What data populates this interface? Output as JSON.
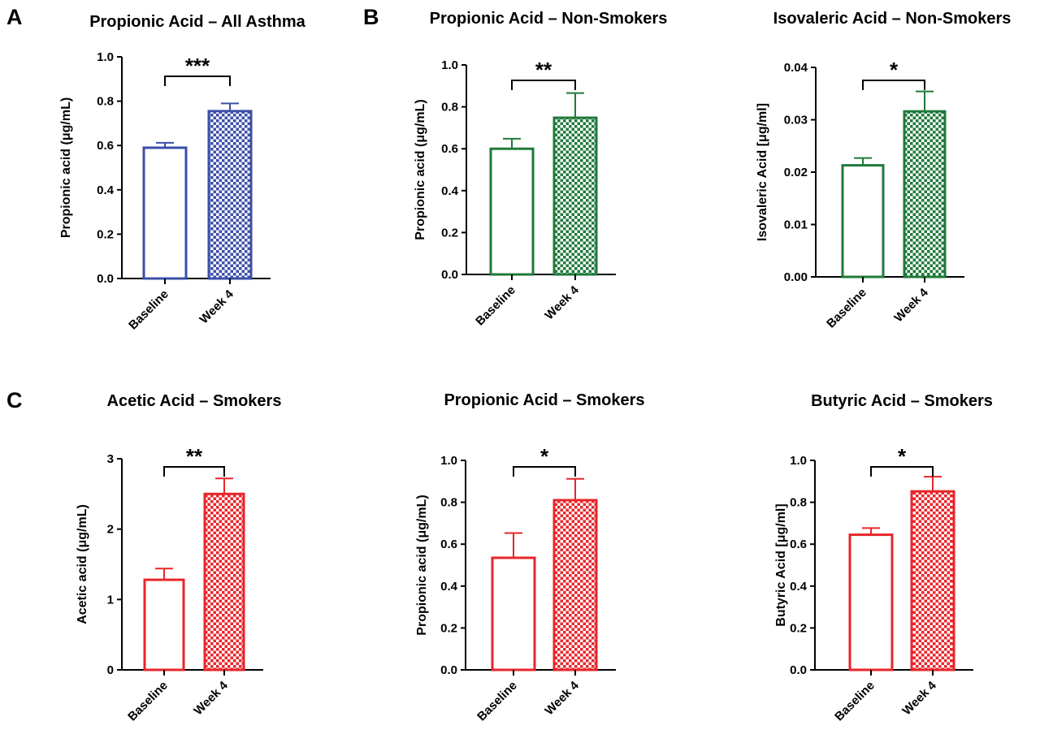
{
  "panel_letters": [
    "A",
    "B",
    "C"
  ],
  "colors": {
    "blue": "#3b4fa8",
    "green": "#1f7a3a",
    "red": "#e8262b"
  },
  "chart_data": [
    {
      "type": "bar",
      "title": "Propionic Acid – All Asthma",
      "ylabel": "Propionic acid (μg/mL)",
      "categories": [
        "Baseline",
        "Week 4"
      ],
      "values": [
        0.59,
        0.755
      ],
      "errors": [
        0.022,
        0.035
      ],
      "ylim": [
        0,
        1.0
      ],
      "yticks": [
        "0.0",
        "0.2",
        "0.4",
        "0.6",
        "0.8",
        "1.0"
      ],
      "significance": "***",
      "color": "blue"
    },
    {
      "type": "bar",
      "title": "Propionic Acid – Non-Smokers",
      "ylabel": "Propionic acid (μg/mL)",
      "categories": [
        "Baseline",
        "Week 4"
      ],
      "values": [
        0.6,
        0.748
      ],
      "errors": [
        0.048,
        0.118
      ],
      "ylim": [
        0,
        1.0
      ],
      "yticks": [
        "0.0",
        "0.2",
        "0.4",
        "0.6",
        "0.8",
        "1.0"
      ],
      "significance": "**",
      "color": "green"
    },
    {
      "type": "bar",
      "title": "Isovaleric Acid – Non-Smokers",
      "ylabel": "Isovaleric Acid [μg/ml]",
      "categories": [
        "Baseline",
        "Week 4"
      ],
      "values": [
        0.0213,
        0.0316
      ],
      "errors": [
        0.0014,
        0.0038
      ],
      "ylim": [
        0,
        0.04
      ],
      "yticks": [
        "0.00",
        "0.01",
        "0.02",
        "0.03",
        "0.04"
      ],
      "significance": "*",
      "color": "green"
    },
    {
      "type": "bar",
      "title": "Acetic Acid – Smokers",
      "ylabel": "Acetic acid (μg/mL)",
      "categories": [
        "Baseline",
        "Week 4"
      ],
      "values": [
        1.28,
        2.5
      ],
      "errors": [
        0.16,
        0.22
      ],
      "ylim": [
        0,
        3
      ],
      "yticks": [
        "0",
        "1",
        "2",
        "3"
      ],
      "significance": "**",
      "color": "red"
    },
    {
      "type": "bar",
      "title": "Propionic Acid – Smokers",
      "ylabel": "Propionic acid (μg/mL)",
      "categories": [
        "Baseline",
        "Week 4"
      ],
      "values": [
        0.535,
        0.81
      ],
      "errors": [
        0.118,
        0.102
      ],
      "ylim": [
        0,
        1.0
      ],
      "yticks": [
        "0.0",
        "0.2",
        "0.4",
        "0.6",
        "0.8",
        "1.0"
      ],
      "significance": "*",
      "color": "red"
    },
    {
      "type": "bar",
      "title": "Butyric Acid – Smokers",
      "ylabel": "Butyric Acid [μg/ml]",
      "categories": [
        "Baseline",
        "Week 4"
      ],
      "values": [
        0.645,
        0.852
      ],
      "errors": [
        0.032,
        0.07
      ],
      "ylim": [
        0,
        1.0
      ],
      "yticks": [
        "0.0",
        "0.2",
        "0.4",
        "0.6",
        "0.8",
        "1.0"
      ],
      "significance": "*",
      "color": "red"
    }
  ]
}
